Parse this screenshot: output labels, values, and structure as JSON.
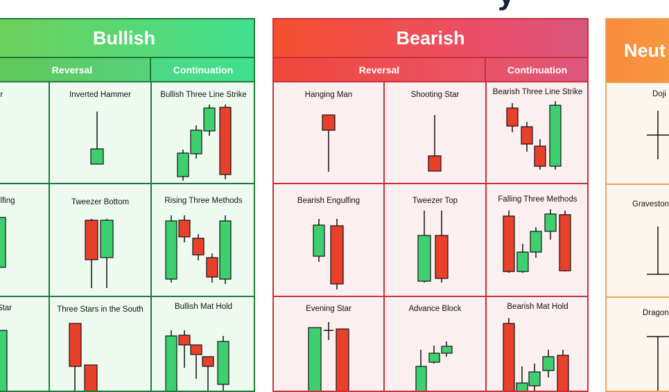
{
  "header_fragment": "y",
  "colors": {
    "bull_border": "#1d7a3a",
    "bull_fill": "#eefaf0",
    "bear_border": "#c8303d",
    "bear_fill": "#fcefef",
    "neutral_border": "#f0a25a",
    "neutral_fill": "#fdf6ee",
    "green_candle": "#3ecf6e",
    "red_candle": "#e8402a"
  },
  "bullish": {
    "title": "Bullish",
    "reversal": "Reversal",
    "continuation": "Continuation",
    "rows": [
      [
        "er",
        "Inverted Hammer",
        "Bullish Three Line Strike"
      ],
      [
        "ulfing",
        "Tweezer Bottom",
        "Rising Three Methods"
      ],
      [
        "Star",
        "Three Stars in the South",
        "Bullish Mat Hold"
      ]
    ]
  },
  "bearish": {
    "title": "Bearish",
    "reversal": "Reversal",
    "continuation": "Continuation",
    "rows": [
      [
        "Hanging Man",
        "Shooting Star",
        "Bearish Three Line Strike"
      ],
      [
        "Bearish Engulfing",
        "Tweezer Top",
        "Falling Three Methods"
      ],
      [
        "Evening Star",
        "Advance Block",
        "Bearish Mat Hold"
      ]
    ]
  },
  "neutral": {
    "title": "Neut",
    "rows": [
      "Doji",
      "Gravestone",
      "Dragonf"
    ]
  }
}
